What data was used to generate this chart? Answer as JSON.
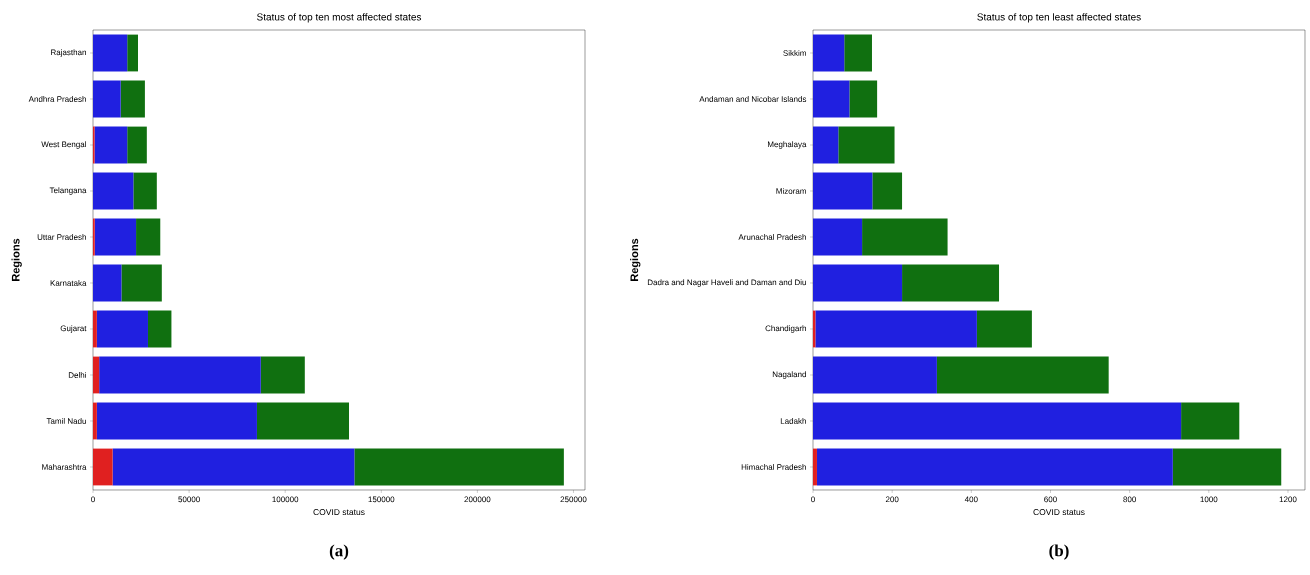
{
  "chart_data": [
    {
      "type": "bar",
      "orientation": "horizontal",
      "stacked": true,
      "title": "Status of top ten most affected states",
      "xlabel": "COVID status",
      "ylabel": "Regions",
      "annotations": [
        "(a)"
      ],
      "categories": [
        "Rajasthan",
        "Andhra Pradesh",
        "West Bengal",
        "Telangana",
        "Uttar Pradesh",
        "Karnataka",
        "Gujarat",
        "Delhi",
        "Tamil Nadu",
        "Maharashtra"
      ],
      "xlim": [
        0,
        256000
      ],
      "xticks": [
        0,
        50000,
        100000,
        150000,
        200000,
        250000
      ],
      "series": [
        {
          "color": "#e02020",
          "values": [
            0,
            0,
            800,
            0,
            900,
            0,
            2000,
            3200,
            2000,
            10200
          ]
        },
        {
          "color": "#2020e0",
          "values": [
            17800,
            14400,
            17000,
            21000,
            21500,
            14800,
            26600,
            84100,
            83300,
            125800
          ]
        },
        {
          "color": "#107010",
          "values": [
            5600,
            12600,
            10200,
            12200,
            12600,
            21000,
            12200,
            22900,
            47900,
            109000
          ]
        }
      ]
    },
    {
      "type": "bar",
      "orientation": "horizontal",
      "stacked": true,
      "title": "Status of top ten least affected states",
      "xlabel": "COVID status",
      "ylabel": "Regions",
      "annotations": [
        "(b)"
      ],
      "categories": [
        "Sikkim",
        "Andaman and Nicobar Islands",
        "Meghalaya",
        "Mizoram",
        "Arunachal Pradesh",
        "Dadra and Nagar Haveli and Daman and Diu",
        "Chandigarh",
        "Nagaland",
        "Ladakh",
        "Himachal Pradesh"
      ],
      "xlim": [
        0,
        1243
      ],
      "xticks": [
        0,
        200,
        400,
        600,
        800,
        1000,
        1200
      ],
      "series": [
        {
          "color": "#e02020",
          "values": [
            0,
            0,
            0,
            0,
            0,
            0,
            6,
            0,
            0,
            10
          ]
        },
        {
          "color": "#2020e0",
          "values": [
            79,
            92,
            64,
            150,
            124,
            225,
            408,
            313,
            930,
            899
          ]
        },
        {
          "color": "#107010",
          "values": [
            70,
            70,
            142,
            75,
            216,
            245,
            139,
            434,
            147,
            274
          ]
        }
      ]
    }
  ]
}
